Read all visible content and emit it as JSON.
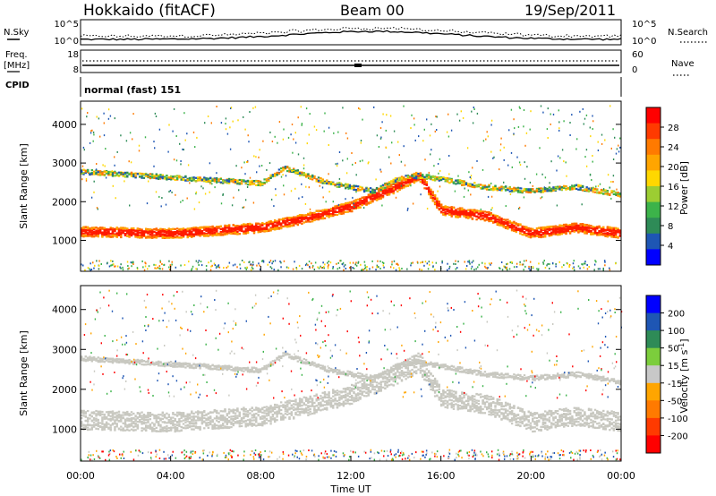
{
  "header": {
    "station": "Hokkaido (fitACF)",
    "beam": "Beam 00",
    "date": "19/Sep/2011"
  },
  "top_panels": {
    "nsky_label": "N.Sky",
    "nsky_ticks": [
      "10^5",
      "10^0"
    ],
    "nsearch_ticks": [
      "10^5",
      "10^0"
    ],
    "nsearch_label": "N.Search",
    "freq_label_1": "Freq.",
    "freq_label_2": "[MHz]",
    "freq_ticks": [
      "18",
      "8"
    ],
    "nave_ticks": [
      "60",
      "0"
    ],
    "nave_label": "Nave",
    "cpid_label": "CPID",
    "cpid_value": "normal (fast) 151"
  },
  "colorbar_power": {
    "title": "Power [dB]",
    "labels": [
      "28",
      "24",
      "20",
      "16",
      "12",
      "8",
      "4"
    ],
    "colors": [
      "#ff0000",
      "#ff3a00",
      "#ff7a00",
      "#ffa500",
      "#ffd700",
      "#9ccd32",
      "#3cb34a",
      "#2e8b57",
      "#1e56b4",
      "#0000ff"
    ]
  },
  "colorbar_velocity": {
    "title": "Velocity [m s",
    "title_sup": "-1",
    "title_end": "]",
    "labels": [
      "200",
      "100",
      "50",
      "15",
      "-15",
      "-50",
      "-100",
      "-200"
    ],
    "colors": [
      "#0000ff",
      "#1e56b4",
      "#2e8b57",
      "#7ccd3c",
      "#c8c8c8",
      "#ffa500",
      "#ff7a00",
      "#ff3a00",
      "#ff0000"
    ]
  },
  "chart_data": [
    {
      "type": "heatmap",
      "panel": "power",
      "ylabel": "Slant Range [km]",
      "ylim": [
        200,
        4600
      ],
      "y_ticks": [
        "4000",
        "3000",
        "2000",
        "1000"
      ],
      "xlim": [
        "00:00",
        "24:00"
      ],
      "bands": [
        {
          "name": "main",
          "points": [
            [
              0,
              1250
            ],
            [
              4,
              1200
            ],
            [
              8,
              1350
            ],
            [
              10,
              1600
            ],
            [
              12,
              1900
            ],
            [
              14,
              2400
            ],
            [
              15,
              2700
            ],
            [
              16,
              1800
            ],
            [
              18,
              1650
            ],
            [
              20,
              1200
            ],
            [
              22,
              1350
            ],
            [
              24,
              1200
            ]
          ],
          "width": 250,
          "color": "#ff1a00"
        },
        {
          "name": "upper",
          "points": [
            [
              0,
              2800
            ],
            [
              4,
              2650
            ],
            [
              8,
              2500
            ],
            [
              9,
              2900
            ],
            [
              11,
              2500
            ],
            [
              13,
              2300
            ],
            [
              14,
              2600
            ],
            [
              15,
              2700
            ],
            [
              18,
              2400
            ],
            [
              20,
              2300
            ],
            [
              22,
              2400
            ],
            [
              24,
              2200
            ]
          ],
          "width": 120,
          "color": "#4aa84a"
        }
      ]
    },
    {
      "type": "heatmap",
      "panel": "velocity",
      "ylabel": "Slant Range [km]",
      "ylim": [
        200,
        4600
      ],
      "y_ticks": [
        "4000",
        "3000",
        "2000",
        "1000"
      ],
      "x_ticks": [
        "00:00",
        "04:00",
        "08:00",
        "12:00",
        "16:00",
        "20:00",
        "00:00"
      ],
      "xlabel": "Time UT",
      "xlim": [
        "00:00",
        "24:00"
      ],
      "bands": [
        {
          "name": "main",
          "points": [
            [
              0,
              1250
            ],
            [
              4,
              1200
            ],
            [
              8,
              1350
            ],
            [
              10,
              1600
            ],
            [
              12,
              1900
            ],
            [
              14,
              2400
            ],
            [
              15,
              2700
            ],
            [
              16,
              1800
            ],
            [
              18,
              1650
            ],
            [
              20,
              1200
            ],
            [
              22,
              1350
            ],
            [
              24,
              1200
            ]
          ],
          "width": 480,
          "color": "#c8c8c0"
        },
        {
          "name": "upper",
          "points": [
            [
              0,
              2800
            ],
            [
              4,
              2650
            ],
            [
              8,
              2500
            ],
            [
              9,
              2900
            ],
            [
              11,
              2500
            ],
            [
              13,
              2300
            ],
            [
              14,
              2600
            ],
            [
              15,
              2700
            ],
            [
              18,
              2400
            ],
            [
              20,
              2300
            ],
            [
              22,
              2400
            ],
            [
              24,
              2200
            ]
          ],
          "width": 120,
          "color": "#c8c8c0"
        }
      ]
    }
  ]
}
